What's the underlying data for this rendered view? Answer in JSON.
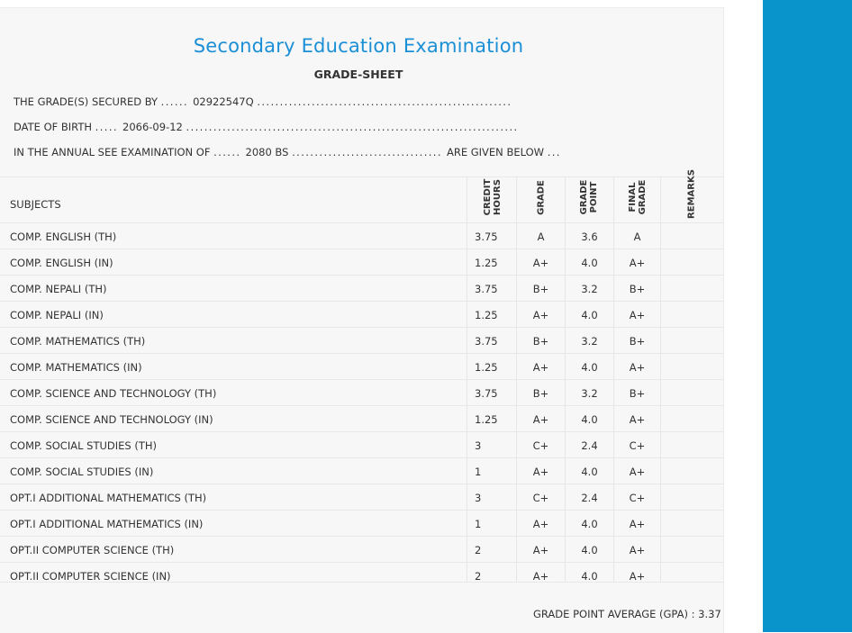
{
  "header": {
    "exam_title": "Secondary Education Examination",
    "subtitle": "GRADE-SHEET"
  },
  "info": {
    "secured_by_label": "THE GRADE(S) SECURED BY",
    "secured_by_value": "02922547Q",
    "dob_label": "DATE OF BIRTH",
    "dob_value": "2066-09-12",
    "exam_label": "IN THE ANNUAL SEE EXAMINATION OF",
    "exam_value": "2080 BS",
    "given_below": "ARE GIVEN BELOW"
  },
  "table": {
    "columns": {
      "subjects": "SUBJECTS",
      "credit_hours_1": "CREDIT",
      "credit_hours_2": "HOURS",
      "grade": "GRADE",
      "grade_point_1": "GRADE",
      "grade_point_2": "POINT",
      "final_grade_1": "FINAL",
      "final_grade_2": "GRADE",
      "remarks": "REMARKS"
    },
    "rows": [
      {
        "subject": "COMP. ENGLISH (TH)",
        "credit": "3.75",
        "grade": "A",
        "point": "3.6",
        "final": "A"
      },
      {
        "subject": "COMP. ENGLISH (IN)",
        "credit": "1.25",
        "grade": "A+",
        "point": "4.0",
        "final": "A+"
      },
      {
        "subject": "COMP. NEPALI (TH)",
        "credit": "3.75",
        "grade": "B+",
        "point": "3.2",
        "final": "B+"
      },
      {
        "subject": "COMP. NEPALI (IN)",
        "credit": "1.25",
        "grade": "A+",
        "point": "4.0",
        "final": "A+"
      },
      {
        "subject": "COMP. MATHEMATICS (TH)",
        "credit": "3.75",
        "grade": "B+",
        "point": "3.2",
        "final": "B+"
      },
      {
        "subject": "COMP. MATHEMATICS (IN)",
        "credit": "1.25",
        "grade": "A+",
        "point": "4.0",
        "final": "A+"
      },
      {
        "subject": "COMP. SCIENCE AND TECHNOLOGY (TH)",
        "credit": "3.75",
        "grade": "B+",
        "point": "3.2",
        "final": "B+"
      },
      {
        "subject": "COMP. SCIENCE AND TECHNOLOGY (IN)",
        "credit": "1.25",
        "grade": "A+",
        "point": "4.0",
        "final": "A+"
      },
      {
        "subject": "COMP. SOCIAL STUDIES (TH)",
        "credit": "3",
        "grade": "C+",
        "point": "2.4",
        "final": "C+"
      },
      {
        "subject": "COMP. SOCIAL STUDIES (IN)",
        "credit": "1",
        "grade": "A+",
        "point": "4.0",
        "final": "A+"
      },
      {
        "subject": "OPT.I ADDITIONAL MATHEMATICS (TH)",
        "credit": "3",
        "grade": "C+",
        "point": "2.4",
        "final": "C+"
      },
      {
        "subject": "OPT.I ADDITIONAL MATHEMATICS (IN)",
        "credit": "1",
        "grade": "A+",
        "point": "4.0",
        "final": "A+"
      },
      {
        "subject": "OPT.II COMPUTER SCIENCE (TH)",
        "credit": "2",
        "grade": "A+",
        "point": "4.0",
        "final": "A+"
      },
      {
        "subject": "OPT.II COMPUTER SCIENCE (IN)",
        "credit": "2",
        "grade": "A+",
        "point": "4.0",
        "final": "A+"
      }
    ]
  },
  "gpa_text": "GRADE POINT AVERAGE (GPA) : 3.37",
  "colors": {
    "title_blue": "#1a8fd6",
    "side_band": "#0a94cc",
    "sheet_bg": "#f7f7f7"
  }
}
